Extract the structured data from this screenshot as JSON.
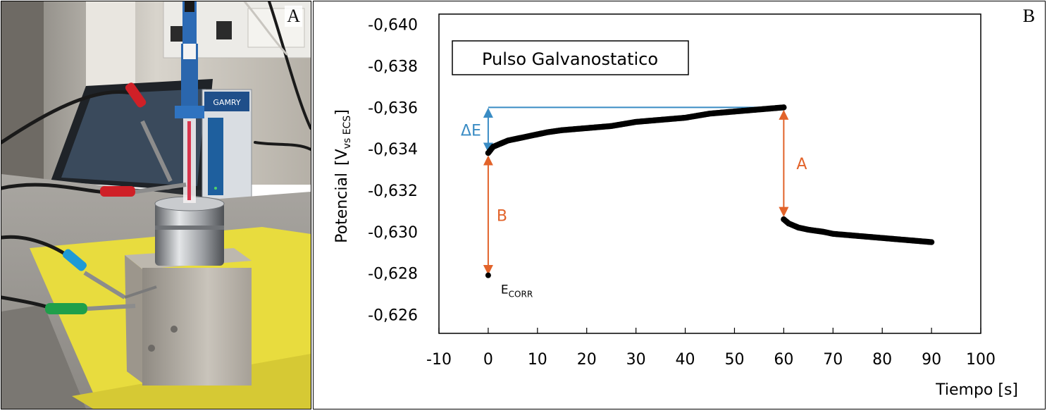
{
  "panel_a": {
    "label": "A",
    "device_brand_text": "GAMRY"
  },
  "panel_b": {
    "label": "B"
  },
  "chart_data": {
    "type": "scatter",
    "title": "Pulso Galvanostatico",
    "xlabel": "Tiempo [s]",
    "ylabel": "Potencial",
    "ylabel_unit_main": "[V",
    "ylabel_unit_sub": "vs ECS",
    "ylabel_unit_close": "]",
    "x_ticks": [
      "-10",
      "0",
      "10",
      "20",
      "30",
      "40",
      "50",
      "60",
      "70",
      "80",
      "90",
      "100"
    ],
    "y_ticks": [
      "-0,640",
      "-0,638",
      "-0,636",
      "-0,634",
      "-0,632",
      "-0,630",
      "-0,628",
      "-0,626"
    ],
    "xlim": [
      -10,
      100
    ],
    "ylim_top_to_bottom": [
      -0.6405,
      -0.6251
    ],
    "y_axis_reversed": true,
    "grid": false,
    "series": [
      {
        "points": [
          [
            0,
            -0.6338
          ],
          [
            1,
            -0.6341
          ],
          [
            2,
            -0.6342
          ],
          [
            3,
            -0.6343
          ],
          [
            4,
            -0.6344
          ],
          [
            6,
            -0.6345
          ],
          [
            8,
            -0.6346
          ],
          [
            10,
            -0.6347
          ],
          [
            12,
            -0.6348
          ],
          [
            15,
            -0.6349
          ],
          [
            20,
            -0.635
          ],
          [
            25,
            -0.6351
          ],
          [
            30,
            -0.6353
          ],
          [
            35,
            -0.6354
          ],
          [
            40,
            -0.6355
          ],
          [
            45,
            -0.6357
          ],
          [
            50,
            -0.6358
          ],
          [
            55,
            -0.6359
          ],
          [
            60,
            -0.636
          ]
        ]
      },
      {
        "points": [
          [
            60,
            -0.6306
          ],
          [
            61,
            -0.6304
          ],
          [
            62,
            -0.6303
          ],
          [
            63,
            -0.6302
          ],
          [
            65,
            -0.6301
          ],
          [
            68,
            -0.63
          ],
          [
            70,
            -0.6299
          ],
          [
            75,
            -0.6298
          ],
          [
            80,
            -0.6297
          ],
          [
            85,
            -0.6296
          ],
          [
            90,
            -0.6295
          ]
        ]
      }
    ],
    "ecorr_point": {
      "x": 0,
      "y": -0.6279,
      "label_main": "E",
      "label_sub": "CORR"
    },
    "annotations": [
      {
        "label": "ΔE",
        "color": "#3a8cc4",
        "x": 0,
        "y_from": -0.636,
        "y_to": -0.6338
      },
      {
        "label": "B",
        "color": "#e2632a",
        "x": 0,
        "y_from": -0.6337,
        "y_to": -0.6279
      },
      {
        "label": "A",
        "color": "#e2632a",
        "x": 60,
        "y_from": -0.6359,
        "y_to": -0.6307
      }
    ],
    "reference_line": {
      "color": "#3a8cc4",
      "y": -0.636,
      "x_from": 0,
      "x_to": 60
    }
  }
}
